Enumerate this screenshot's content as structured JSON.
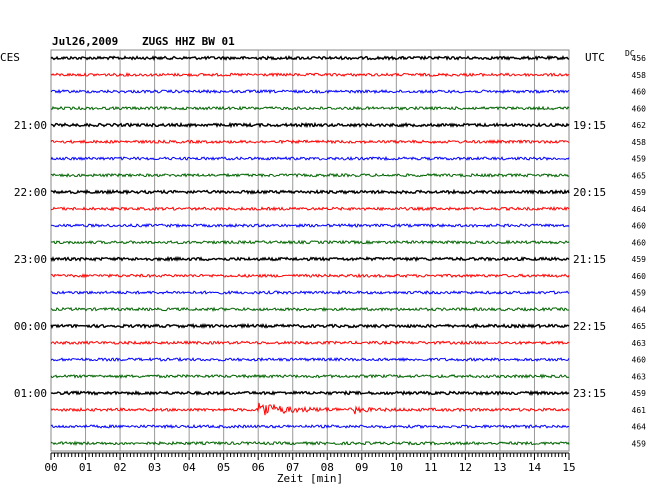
{
  "header": {
    "date": "Jul26,2009",
    "station": "ZUGS HHZ BW 01",
    "left_zone": "CES",
    "right_zone": "UTC",
    "dc_label": "DC"
  },
  "chart_data": {
    "type": "line",
    "title": "Jul26,2009   ZUGS HHZ BW 01",
    "xlabel": "Zeit [min]",
    "xlim": [
      0,
      15
    ],
    "x_ticks": [
      "00",
      "01",
      "02",
      "03",
      "04",
      "05",
      "06",
      "07",
      "08",
      "09",
      "10",
      "11",
      "12",
      "13",
      "14",
      "15"
    ],
    "trace_colors": [
      "#000000",
      "#ff0000",
      "#0000ff",
      "#006400"
    ],
    "left_hour_labels": [
      {
        "trace": 4,
        "label": "21:00"
      },
      {
        "trace": 8,
        "label": "22:00"
      },
      {
        "trace": 12,
        "label": "23:00"
      },
      {
        "trace": 16,
        "label": "00:00"
      },
      {
        "trace": 20,
        "label": "01:00"
      }
    ],
    "right_hour_labels": [
      {
        "trace": 4,
        "label": "19:15"
      },
      {
        "trace": 8,
        "label": "20:15"
      },
      {
        "trace": 12,
        "label": "21:15"
      },
      {
        "trace": 16,
        "label": "22:15"
      },
      {
        "trace": 20,
        "label": "23:15"
      }
    ],
    "dc_values": [
      "456",
      "458",
      "460",
      "460",
      "462",
      "458",
      "459",
      "465",
      "459",
      "464",
      "460",
      "460",
      "459",
      "460",
      "459",
      "464",
      "465",
      "463",
      "460",
      "463",
      "459",
      "461",
      "464",
      "459"
    ],
    "event": {
      "trace": 21,
      "onset_min": 6.0,
      "secondary_min": 8.8
    }
  }
}
